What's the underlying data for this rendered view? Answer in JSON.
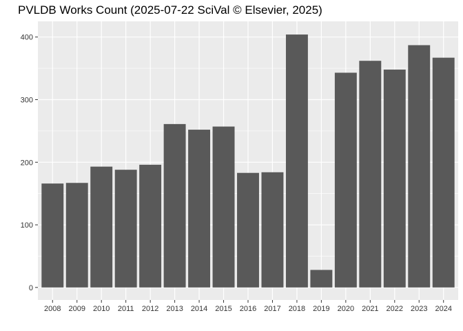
{
  "chart_data": {
    "type": "bar",
    "title": "PVLDB Works Count (2025-07-22 SciVal © Elsevier, 2025)",
    "xlabel": "",
    "ylabel": "",
    "categories": [
      "2008",
      "2009",
      "2010",
      "2011",
      "2012",
      "2013",
      "2014",
      "2015",
      "2016",
      "2017",
      "2018",
      "2019",
      "2020",
      "2021",
      "2022",
      "2023",
      "2024"
    ],
    "values": [
      166,
      167,
      193,
      188,
      196,
      261,
      252,
      257,
      183,
      184,
      404,
      28,
      343,
      362,
      348,
      387,
      367
    ],
    "ylim": [
      -20,
      425
    ],
    "yticks": [
      0,
      100,
      200,
      300,
      400
    ],
    "grid": true,
    "bar_color": "#595959",
    "panel_color": "#ebebeb",
    "grid_color": "#ffffff"
  }
}
